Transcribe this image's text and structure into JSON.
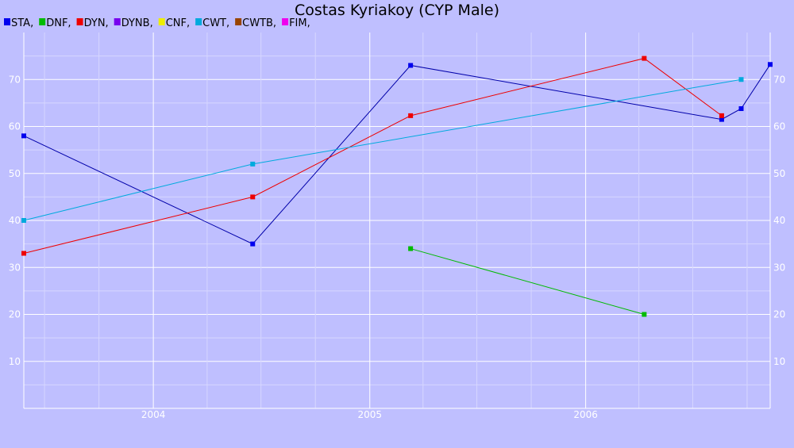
{
  "chart_data": {
    "type": "line",
    "title": "Costas Kyriakoy (CYP Male)",
    "xlabel": "",
    "ylabel": "",
    "x_axis": {
      "type": "date",
      "min": "2003-05-27",
      "max": "2006-11-09",
      "tick_labels": [
        "2004",
        "2005",
        "2006"
      ]
    },
    "ylim": [
      0,
      80
    ],
    "y_ticks": [
      10,
      20,
      30,
      40,
      50,
      60,
      70
    ],
    "grid": true,
    "legend": {
      "placement": "top-left"
    },
    "legend_entries": [
      {
        "label": "STA,",
        "color": "#0000ee"
      },
      {
        "label": "DNF,",
        "color": "#00bb00"
      },
      {
        "label": "DYN,",
        "color": "#ee0000"
      },
      {
        "label": "DYNB,",
        "color": "#7700ee"
      },
      {
        "label": "CNF,",
        "color": "#eeee00"
      },
      {
        "label": "CWT,",
        "color": "#00aadd"
      },
      {
        "label": "CWTB,",
        "color": "#994400"
      },
      {
        "label": "FIM,",
        "color": "#ee00ee"
      }
    ],
    "series": [
      {
        "name": "STA,",
        "color": "#0000ee",
        "line_color": "#0000aa",
        "points": [
          {
            "x": "2003-05-27",
            "y": 58
          },
          {
            "x": "2004-06-17",
            "y": 35
          },
          {
            "x": "2005-03-11",
            "y": 73
          },
          {
            "x": "2006-08-19",
            "y": 61.5
          },
          {
            "x": "2006-09-21",
            "y": 63.8
          },
          {
            "x": "2006-11-09",
            "y": 73.2
          }
        ]
      },
      {
        "name": "DNF,",
        "color": "#00bb00",
        "line_color": "#00bb00",
        "points": [
          {
            "x": "2005-03-11",
            "y": 34
          },
          {
            "x": "2006-04-10",
            "y": 20
          }
        ]
      },
      {
        "name": "DYN,",
        "color": "#ee0000",
        "line_color": "#ee0000",
        "points": [
          {
            "x": "2003-05-27",
            "y": 33
          },
          {
            "x": "2004-06-17",
            "y": 45
          },
          {
            "x": "2005-03-11",
            "y": 62.3
          },
          {
            "x": "2006-04-10",
            "y": 74.5
          },
          {
            "x": "2006-08-19",
            "y": 62.3
          }
        ]
      },
      {
        "name": "CWT,",
        "color": "#00aadd",
        "line_color": "#00aadd",
        "points": [
          {
            "x": "2003-05-27",
            "y": 40
          },
          {
            "x": "2004-06-17",
            "y": 52
          },
          {
            "x": "2006-09-21",
            "y": 70
          }
        ]
      }
    ]
  }
}
